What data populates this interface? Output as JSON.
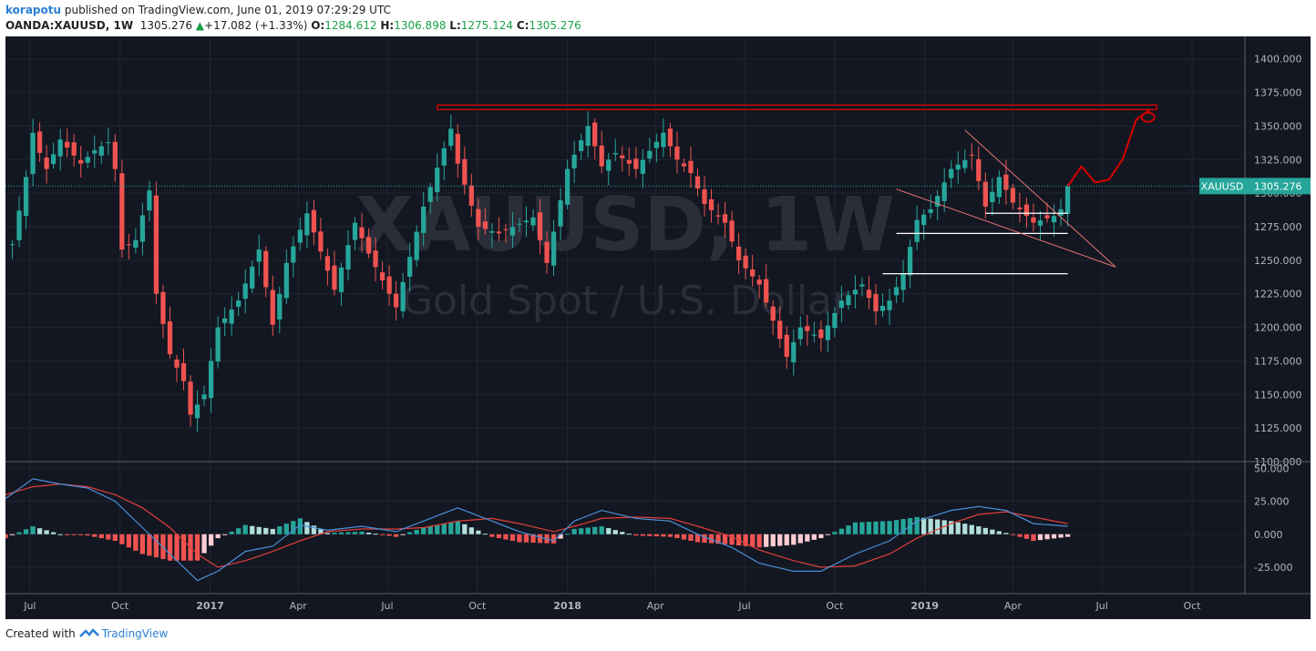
{
  "header": {
    "author": "korapotu",
    "published_text": "published on TradingView.com, June 01, 2019 07:29:29 UTC",
    "symbol": "OANDA:XAUUSD, 1W",
    "last_price": "1305.276",
    "change": "+17.082 (+1.33%)",
    "open_label": "O:",
    "open_value": "1284.612",
    "high_label": "H:",
    "high_value": "1306.898",
    "low_label": "L:",
    "low_value": "1275.124",
    "close_label": "C:",
    "close_value": "1305.276"
  },
  "footer": {
    "created_with": "Created with",
    "brand": "TradingView"
  },
  "watermark": {
    "symbol": "XAUUSD, 1W",
    "description": "Gold Spot / U.S. Dollar"
  },
  "price_tag": {
    "label": "XAUUSD",
    "value": "1305.276"
  },
  "colors": {
    "background": "#131722",
    "grid": "#363c4e",
    "text": "#b2b5be",
    "up": "#26a69a",
    "down": "#ef5350",
    "macd": "#4a90d9",
    "signal": "#e0403a",
    "hist_up_strong": "#26a69a",
    "hist_up_weak": "#b2dfdb",
    "hist_down_strong": "#ef5350",
    "hist_down_weak": "#ffcdd2",
    "drawing_red": "#cc0000",
    "tag_bg": "#26a69a"
  },
  "chart_data": {
    "type": "candlestick",
    "title": "OANDA:XAUUSD, 1W",
    "x_axis": {
      "type": "date",
      "tick_labels": [
        "Jul",
        "Oct",
        "2017",
        "Apr",
        "Jul",
        "Oct",
        "2018",
        "Apr",
        "Jul",
        "Oct",
        "2019",
        "Apr",
        "Jul",
        "Oct"
      ],
      "tick_dates": [
        "2016-07-01",
        "2016-10-01",
        "2017-01-01",
        "2017-04-01",
        "2017-07-01",
        "2017-10-01",
        "2018-01-01",
        "2018-04-01",
        "2018-07-01",
        "2018-10-01",
        "2019-01-01",
        "2019-04-01",
        "2019-07-01",
        "2019-10-01"
      ],
      "range": [
        "2016-06-06",
        "2019-11-24"
      ]
    },
    "price_axis": {
      "range": [
        1100,
        1410
      ],
      "ticks": [
        "1400.000",
        "1375.000",
        "1350.000",
        "1325.000",
        "1300.000",
        "1275.000",
        "1250.000",
        "1225.000",
        "1200.000",
        "1175.000",
        "1150.000",
        "1125.000",
        "1100.000"
      ],
      "tick_values": [
        1400,
        1375,
        1350,
        1325,
        1300,
        1275,
        1250,
        1225,
        1200,
        1175,
        1150,
        1125,
        1100
      ]
    },
    "macd_axis": {
      "range": [
        -45,
        55
      ],
      "ticks": [
        "50.000",
        "25.000",
        "0.000",
        "-25.000"
      ],
      "tick_values": [
        50,
        25,
        0,
        -25
      ]
    },
    "last_price": 1305.276,
    "close_path": [
      [
        "2016-06-13",
        1262
      ],
      [
        "2016-06-27",
        1312
      ],
      [
        "2016-07-04",
        1345
      ],
      [
        "2016-07-11",
        1330
      ],
      [
        "2016-07-18",
        1318
      ],
      [
        "2016-08-01",
        1340
      ],
      [
        "2016-08-22",
        1322
      ],
      [
        "2016-09-05",
        1332
      ],
      [
        "2016-09-19",
        1338
      ],
      [
        "2016-09-26",
        1318
      ],
      [
        "2016-10-03",
        1258
      ],
      [
        "2016-10-17",
        1265
      ],
      [
        "2016-10-31",
        1302
      ],
      [
        "2016-11-07",
        1225
      ],
      [
        "2016-11-21",
        1180
      ],
      [
        "2016-12-05",
        1160
      ],
      [
        "2016-12-12",
        1135
      ],
      [
        "2016-12-26",
        1150
      ],
      [
        "2017-01-09",
        1200
      ],
      [
        "2017-01-30",
        1220
      ],
      [
        "2017-02-20",
        1258
      ],
      [
        "2017-03-06",
        1202
      ],
      [
        "2017-03-20",
        1248
      ],
      [
        "2017-04-10",
        1285
      ],
      [
        "2017-05-08",
        1228
      ],
      [
        "2017-05-29",
        1278
      ],
      [
        "2017-06-12",
        1255
      ],
      [
        "2017-07-10",
        1215
      ],
      [
        "2017-08-07",
        1290
      ],
      [
        "2017-09-04",
        1348
      ],
      [
        "2017-09-11",
        1322
      ],
      [
        "2017-10-02",
        1275
      ],
      [
        "2017-10-23",
        1270
      ],
      [
        "2017-11-27",
        1282
      ],
      [
        "2017-12-11",
        1248
      ],
      [
        "2018-01-01",
        1318
      ],
      [
        "2018-01-22",
        1350
      ],
      [
        "2018-02-05",
        1320
      ],
      [
        "2018-02-19",
        1330
      ],
      [
        "2018-03-12",
        1318
      ],
      [
        "2018-04-09",
        1345
      ],
      [
        "2018-04-23",
        1325
      ],
      [
        "2018-05-07",
        1315
      ],
      [
        "2018-05-21",
        1292
      ],
      [
        "2018-06-11",
        1278
      ],
      [
        "2018-06-25",
        1250
      ],
      [
        "2018-07-16",
        1232
      ],
      [
        "2018-08-13",
        1178
      ],
      [
        "2018-08-27",
        1200
      ],
      [
        "2018-09-17",
        1192
      ],
      [
        "2018-10-08",
        1220
      ],
      [
        "2018-10-29",
        1232
      ],
      [
        "2018-11-12",
        1212
      ],
      [
        "2018-11-26",
        1220
      ],
      [
        "2018-12-10",
        1240
      ],
      [
        "2018-12-24",
        1280
      ],
      [
        "2019-01-07",
        1288
      ],
      [
        "2019-01-28",
        1318
      ],
      [
        "2019-02-18",
        1328
      ],
      [
        "2019-03-04",
        1290
      ],
      [
        "2019-03-18",
        1312
      ],
      [
        "2019-04-01",
        1293
      ],
      [
        "2019-04-22",
        1278
      ],
      [
        "2019-05-13",
        1283
      ],
      [
        "2019-05-20",
        1288
      ],
      [
        "2019-05-27",
        1305.276
      ]
    ],
    "indicator": {
      "name": "MACD",
      "macd_path": [
        [
          "2016-06-06",
          27
        ],
        [
          "2016-07-04",
          42
        ],
        [
          "2016-08-01",
          38
        ],
        [
          "2016-08-29",
          35
        ],
        [
          "2016-09-26",
          25
        ],
        [
          "2016-10-24",
          5
        ],
        [
          "2016-11-21",
          -15
        ],
        [
          "2016-12-19",
          -35
        ],
        [
          "2017-01-09",
          -28
        ],
        [
          "2017-02-06",
          -13
        ],
        [
          "2017-03-06",
          -9
        ],
        [
          "2017-04-03",
          7
        ],
        [
          "2017-05-01",
          3
        ],
        [
          "2017-06-05",
          6
        ],
        [
          "2017-07-10",
          2
        ],
        [
          "2017-08-07",
          10
        ],
        [
          "2017-09-11",
          20
        ],
        [
          "2017-10-16",
          10
        ],
        [
          "2017-11-13",
          2
        ],
        [
          "2017-12-18",
          -5
        ],
        [
          "2018-01-08",
          10
        ],
        [
          "2018-02-05",
          18
        ],
        [
          "2018-03-12",
          12
        ],
        [
          "2018-04-16",
          10
        ],
        [
          "2018-05-14",
          0
        ],
        [
          "2018-06-18",
          -10
        ],
        [
          "2018-07-16",
          -22
        ],
        [
          "2018-08-20",
          -28
        ],
        [
          "2018-09-17",
          -28
        ],
        [
          "2018-10-22",
          -15
        ],
        [
          "2018-11-26",
          -5
        ],
        [
          "2018-12-24",
          10
        ],
        [
          "2019-01-28",
          18
        ],
        [
          "2019-02-25",
          21
        ],
        [
          "2019-03-25",
          18
        ],
        [
          "2019-04-22",
          8
        ],
        [
          "2019-05-27",
          6
        ]
      ],
      "signal_path": [
        [
          "2016-06-06",
          30
        ],
        [
          "2016-07-04",
          36
        ],
        [
          "2016-08-01",
          38
        ],
        [
          "2016-08-29",
          36
        ],
        [
          "2016-09-26",
          30
        ],
        [
          "2016-10-24",
          20
        ],
        [
          "2016-11-21",
          5
        ],
        [
          "2016-12-19",
          -15
        ],
        [
          "2017-01-09",
          -25
        ],
        [
          "2017-02-06",
          -20
        ],
        [
          "2017-03-06",
          -13
        ],
        [
          "2017-04-03",
          -5
        ],
        [
          "2017-05-01",
          2
        ],
        [
          "2017-06-05",
          4
        ],
        [
          "2017-07-10",
          4
        ],
        [
          "2017-08-07",
          5
        ],
        [
          "2017-09-11",
          10
        ],
        [
          "2017-10-16",
          12
        ],
        [
          "2017-11-13",
          8
        ],
        [
          "2017-12-18",
          2
        ],
        [
          "2018-01-08",
          6
        ],
        [
          "2018-02-05",
          12
        ],
        [
          "2018-03-12",
          13
        ],
        [
          "2018-04-16",
          12
        ],
        [
          "2018-05-14",
          6
        ],
        [
          "2018-06-18",
          -2
        ],
        [
          "2018-07-16",
          -12
        ],
        [
          "2018-08-20",
          -20
        ],
        [
          "2018-09-17",
          -25
        ],
        [
          "2018-10-22",
          -24
        ],
        [
          "2018-11-26",
          -15
        ],
        [
          "2018-12-24",
          -3
        ],
        [
          "2019-01-28",
          8
        ],
        [
          "2019-02-25",
          15
        ],
        [
          "2019-03-25",
          17
        ],
        [
          "2019-04-22",
          13
        ],
        [
          "2019-05-27",
          8
        ]
      ]
    },
    "annotations": {
      "resistance_line": {
        "price": 1364,
        "from": "2017-08-21",
        "to": "2019-08-26"
      },
      "horizontal_lines": [
        {
          "price": 1285,
          "from": "2019-03-04",
          "to": "2019-05-27"
        },
        {
          "price": 1270,
          "from": "2018-12-03",
          "to": "2019-05-27"
        },
        {
          "price": 1240,
          "from": "2018-11-19",
          "to": "2019-05-27"
        }
      ],
      "wedge": {
        "upper": [
          [
            "2019-02-11",
            1347
          ],
          [
            "2019-07-15",
            1245
          ]
        ],
        "lower": [
          [
            "2018-12-03",
            1303
          ],
          [
            "2019-07-15",
            1245
          ]
        ]
      },
      "projection": [
        [
          "2019-05-27",
          1305
        ],
        [
          "2019-06-10",
          1320
        ],
        [
          "2019-06-24",
          1308
        ],
        [
          "2019-07-08",
          1310
        ],
        [
          "2019-07-22",
          1325
        ],
        [
          "2019-08-05",
          1355
        ],
        [
          "2019-08-19",
          1362
        ]
      ]
    }
  }
}
